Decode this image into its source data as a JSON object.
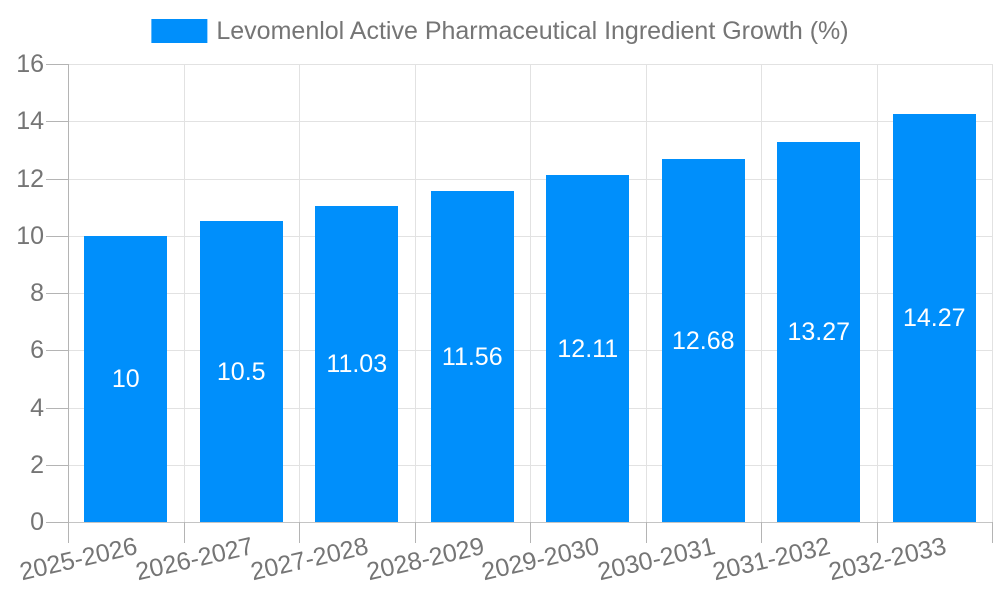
{
  "chart_data": {
    "type": "bar",
    "title": "Levomenlol Active Pharmaceutical Ingredient Growth (%)",
    "legend_position": "top",
    "categories": [
      "2025-2026",
      "2026-2027",
      "2027-2028",
      "2028-2029",
      "2029-2030",
      "2030-2031",
      "2031-2032",
      "2032-2033"
    ],
    "series": [
      {
        "name": "Levomenlol Active Pharmaceutical Ingredient Growth (%)",
        "values": [
          10,
          10.5,
          11.03,
          11.56,
          12.11,
          12.68,
          13.27,
          14.27
        ]
      }
    ],
    "value_labels": [
      "10",
      "10.5",
      "11.03",
      "11.56",
      "12.11",
      "12.68",
      "13.27",
      "14.27"
    ],
    "xlabel": "",
    "ylabel": "",
    "ylim": [
      0,
      16
    ],
    "yticks": [
      0,
      2,
      4,
      6,
      8,
      10,
      12,
      14,
      16
    ],
    "grid": true,
    "x_label_rotation_deg": -13,
    "colors": {
      "bar": "#008FFB",
      "axis_text": "#757575",
      "grid_line": "#e2e2e2",
      "zero_line": "#c4c4c4",
      "axis_line": "#b4b4b4",
      "tick": "#b4b4b4",
      "value_label": "#ffffff",
      "background": "#ffffff"
    }
  }
}
